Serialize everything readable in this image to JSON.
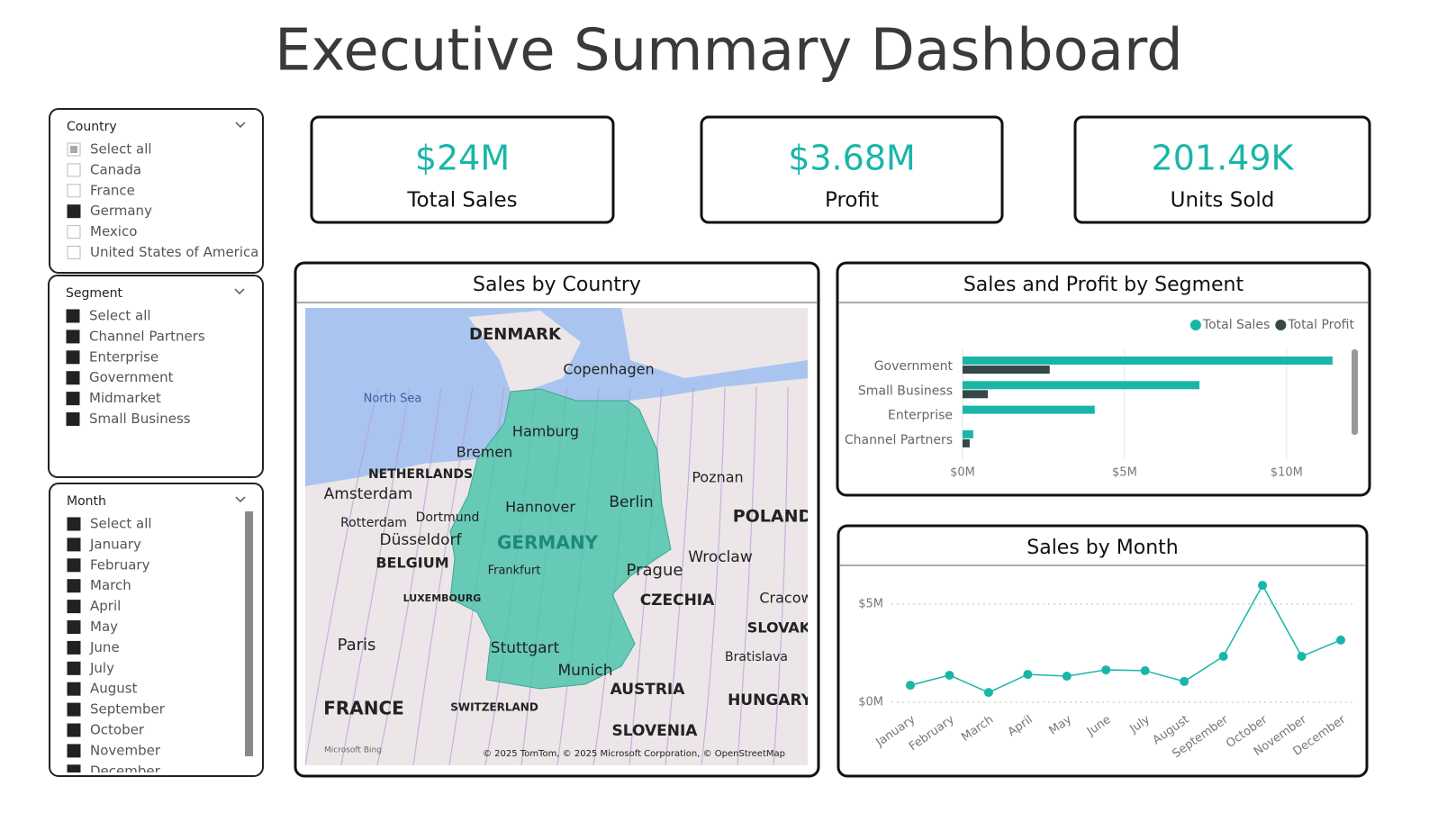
{
  "title": "Executive Summary Dashboard",
  "slicers": [
    {
      "title": "Country",
      "items": [
        {
          "label": "Select all",
          "state": "partial"
        },
        {
          "label": "Canada",
          "state": "unchecked"
        },
        {
          "label": "France",
          "state": "unchecked"
        },
        {
          "label": "Germany",
          "state": "checked"
        },
        {
          "label": "Mexico",
          "state": "unchecked"
        },
        {
          "label": "United States of America",
          "state": "unchecked"
        }
      ]
    },
    {
      "title": "Segment",
      "items": [
        {
          "label": "Select all",
          "state": "checked"
        },
        {
          "label": "Channel Partners",
          "state": "checked"
        },
        {
          "label": "Enterprise",
          "state": "checked"
        },
        {
          "label": "Government",
          "state": "checked"
        },
        {
          "label": "Midmarket",
          "state": "checked"
        },
        {
          "label": "Small Business",
          "state": "checked"
        }
      ]
    },
    {
      "title": "Month",
      "items": [
        {
          "label": "Select all",
          "state": "checked"
        },
        {
          "label": "January",
          "state": "checked"
        },
        {
          "label": "February",
          "state": "checked"
        },
        {
          "label": "March",
          "state": "checked"
        },
        {
          "label": "April",
          "state": "checked"
        },
        {
          "label": "May",
          "state": "checked"
        },
        {
          "label": "June",
          "state": "checked"
        },
        {
          "label": "July",
          "state": "checked"
        },
        {
          "label": "August",
          "state": "checked"
        },
        {
          "label": "September",
          "state": "checked"
        },
        {
          "label": "October",
          "state": "checked"
        },
        {
          "label": "November",
          "state": "checked"
        },
        {
          "label": "December",
          "state": "checked"
        }
      ]
    }
  ],
  "kpis": [
    {
      "value": "$24M",
      "label": "Total Sales"
    },
    {
      "value": "$3.68M",
      "label": "Profit"
    },
    {
      "value": "201.49K",
      "label": "Units Sold"
    }
  ],
  "map": {
    "title": "Sales by Country",
    "labels": [
      "DENMARK",
      "Copenhagen",
      "North Sea",
      "Hamburg",
      "Bremen",
      "NETHERLANDS",
      "Amsterdam",
      "Poznan",
      "Hannover",
      "Berlin",
      "POLAND",
      "Rotterdam",
      "Dortmund",
      "Düsseldorf",
      "GERMANY",
      "BELGIUM",
      "Frankfurt",
      "Prague",
      "Wroclaw",
      "CZECHIA",
      "Cracow",
      "LUXEMBOURG",
      "SLOVAK",
      "Paris",
      "Stuttgart",
      "Bratislava",
      "Munich",
      "AUSTRIA",
      "HUNGARY",
      "FRANCE",
      "SWITZERLAND",
      "SLOVENIA"
    ],
    "logo": "Microsoft Bing",
    "attribution": "© 2025 TomTom, © 2025 Microsoft Corporation, © OpenStreetMap"
  },
  "chart_data": [
    {
      "type": "hbar",
      "title": "Sales and Profit by Segment",
      "categories": [
        "Government",
        "Small Business",
        "Enterprise",
        "Channel Partners"
      ],
      "series": [
        {
          "name": "Total Sales",
          "color": "#19b6a8",
          "values": [
            11420000,
            7310000,
            4080000,
            330000
          ]
        },
        {
          "name": "Total Profit",
          "color": "#374649",
          "values": [
            2690000,
            780000,
            0,
            220000
          ]
        }
      ],
      "xlim": [
        0,
        11700000
      ],
      "xticks": [
        {
          "value": 0,
          "label": "$0M"
        },
        {
          "value": 5000000,
          "label": "$5M"
        },
        {
          "value": 10000000,
          "label": "$10M"
        }
      ],
      "grid": true,
      "legend": "top-right"
    },
    {
      "type": "line",
      "title": "Sales by Month",
      "categories": [
        "January",
        "February",
        "March",
        "April",
        "May",
        "June",
        "July",
        "August",
        "September",
        "October",
        "November",
        "December"
      ],
      "values": [
        870000,
        1380000,
        500000,
        1420000,
        1330000,
        1650000,
        1610000,
        1060000,
        2340000,
        5960000,
        2340000,
        3170000
      ],
      "color": "#19b6a8",
      "ylim": [
        -700000,
        6400000
      ],
      "yticks": [
        {
          "value": 0,
          "label": "$0M"
        },
        {
          "value": 5000000,
          "label": "$5M"
        }
      ],
      "grid": true
    }
  ]
}
